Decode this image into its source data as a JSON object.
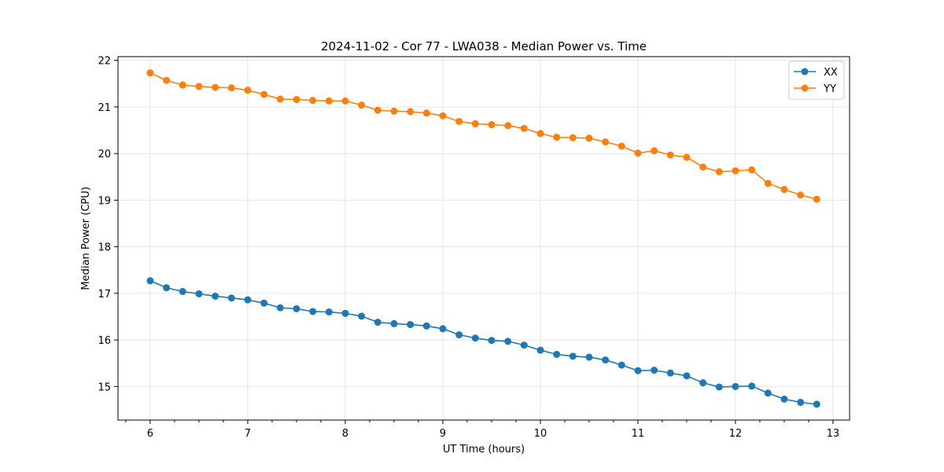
{
  "chart_data": {
    "type": "line",
    "title": "2024-11-02 - Cor 77 - LWA038 - Median Power vs. Time",
    "xlabel": "UT Time (hours)",
    "ylabel": "Median Power (CPU)",
    "xlim": [
      5.67,
      13.17
    ],
    "ylim": [
      14.28,
      22.08
    ],
    "xticks": [
      6,
      7,
      8,
      9,
      10,
      11,
      12,
      13
    ],
    "yticks": [
      15,
      16,
      17,
      18,
      19,
      20,
      21,
      22
    ],
    "xminor_step": 0.25,
    "grid": true,
    "legend_position": "top-right",
    "x": [
      6.0,
      6.167,
      6.333,
      6.5,
      6.667,
      6.833,
      7.0,
      7.167,
      7.333,
      7.5,
      7.667,
      7.833,
      8.0,
      8.167,
      8.333,
      8.5,
      8.667,
      8.833,
      9.0,
      9.167,
      9.333,
      9.5,
      9.667,
      9.833,
      10.0,
      10.167,
      10.333,
      10.5,
      10.667,
      10.833,
      11.0,
      11.167,
      11.333,
      11.5,
      11.667,
      11.833,
      12.0,
      12.167,
      12.333,
      12.5,
      12.667,
      12.833
    ],
    "series": [
      {
        "name": "XX",
        "color": "#1f77b4",
        "values": [
          17.27,
          17.12,
          17.04,
          16.99,
          16.94,
          16.9,
          16.86,
          16.79,
          16.69,
          16.67,
          16.61,
          16.6,
          16.57,
          16.51,
          16.38,
          16.35,
          16.33,
          16.3,
          16.24,
          16.11,
          16.04,
          15.99,
          15.97,
          15.89,
          15.78,
          15.69,
          15.65,
          15.63,
          15.57,
          15.46,
          15.34,
          15.35,
          15.29,
          15.23,
          15.08,
          14.99,
          15.0,
          15.01,
          14.86,
          14.73,
          14.66,
          14.62
        ]
      },
      {
        "name": "YY",
        "color": "#ff7f0e",
        "values": [
          21.73,
          21.57,
          21.47,
          21.44,
          21.42,
          21.41,
          21.36,
          21.27,
          21.17,
          21.16,
          21.14,
          21.13,
          21.13,
          21.04,
          20.93,
          20.91,
          20.9,
          20.87,
          20.81,
          20.69,
          20.64,
          20.62,
          20.6,
          20.54,
          20.43,
          20.35,
          20.34,
          20.33,
          20.25,
          20.16,
          20.01,
          20.06,
          19.97,
          19.92,
          19.71,
          19.61,
          19.63,
          19.65,
          19.36,
          19.23,
          19.11,
          19.02
        ]
      }
    ]
  }
}
